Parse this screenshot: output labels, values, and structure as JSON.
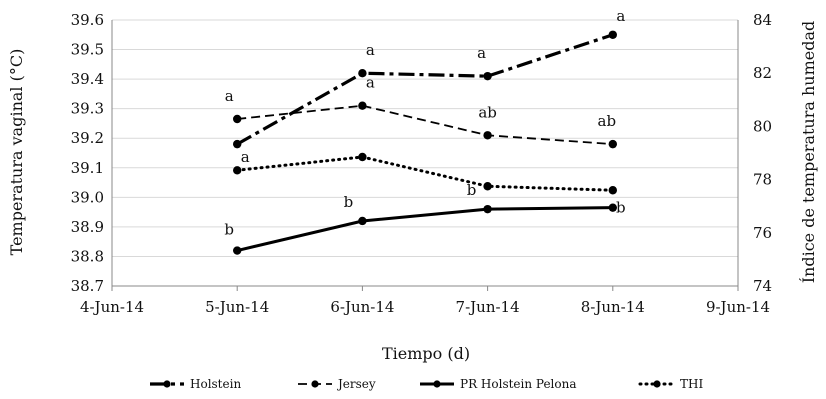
{
  "chart_data": {
    "type": "line",
    "title": "",
    "xlabel": "Tiempo (d)",
    "ylabel": "Temperatura vaginal (°C)",
    "y2label": "Índice de temperatura humedad",
    "x_ticks": [
      "4-Jun-14",
      "5-Jun-14",
      "6-Jun-14",
      "7-Jun-14",
      "8-Jun-14",
      "9-Jun-14"
    ],
    "xlim": [
      "4-Jun-14",
      "9-Jun-14"
    ],
    "ylim": [
      38.7,
      39.6
    ],
    "y_ticks": [
      "38.7",
      "38.8",
      "38.9",
      "39.0",
      "39.1",
      "39.2",
      "39.3",
      "39.4",
      "39.5",
      "39.6"
    ],
    "y2lim": [
      74,
      84
    ],
    "y2_ticks": [
      "74",
      "76",
      "78",
      "80",
      "82",
      "84"
    ],
    "grid": "horizontal",
    "legend_position": "bottom",
    "series": [
      {
        "name": "Holstein",
        "axis": "left",
        "style": "dash-dot",
        "x": [
          "5-Jun-14",
          "6-Jun-14",
          "7-Jun-14",
          "8-Jun-14"
        ],
        "values": [
          39.18,
          39.42,
          39.41,
          39.55
        ],
        "labels": [
          "a",
          "a",
          "a",
          "a"
        ]
      },
      {
        "name": "Jersey",
        "axis": "left",
        "style": "dashed",
        "x": [
          "5-Jun-14",
          "6-Jun-14",
          "7-Jun-14",
          "8-Jun-14"
        ],
        "values": [
          39.265,
          39.31,
          39.21,
          39.18
        ],
        "labels": [
          "a",
          "a",
          "ab",
          "ab"
        ]
      },
      {
        "name": "PR Holstein Pelona",
        "axis": "left",
        "style": "solid",
        "x": [
          "5-Jun-14",
          "6-Jun-14",
          "7-Jun-14",
          "8-Jun-14"
        ],
        "values": [
          38.82,
          38.92,
          38.96,
          38.965
        ],
        "labels": [
          "b",
          "b",
          "b",
          "b"
        ]
      },
      {
        "name": "THI",
        "axis": "right",
        "style": "dotted",
        "x": [
          "5-Jun-14",
          "6-Jun-14",
          "7-Jun-14",
          "8-Jun-14"
        ],
        "values": [
          78.35,
          78.85,
          77.75,
          77.6
        ],
        "labels": []
      }
    ]
  }
}
